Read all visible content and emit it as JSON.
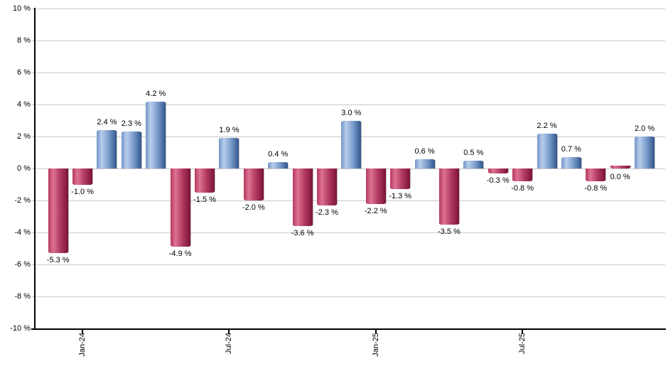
{
  "chart_data": {
    "type": "bar",
    "title": "",
    "xlabel": "",
    "ylabel": "",
    "unit": "%",
    "values": [
      -5.3,
      -1.0,
      2.4,
      2.3,
      4.2,
      -4.9,
      -1.5,
      1.9,
      -2.0,
      0.4,
      -3.6,
      -2.3,
      3.0,
      -2.2,
      -1.3,
      0.6,
      -3.5,
      0.5,
      -0.3,
      -0.8,
      2.2,
      0.7,
      -0.8,
      0.0,
      2.0
    ],
    "value_label_format": "{value} %",
    "y_axis": {
      "min": -10,
      "max": 10,
      "step": 2,
      "tick_labels": [
        "10 %",
        "8 %",
        "6 %",
        "4 %",
        "2 %",
        "0 %",
        "-2 %",
        "-4 %",
        "-6 %",
        "-8 %",
        "-10 %"
      ]
    },
    "x_axis": {
      "ticks": [
        {
          "bar_index": 1,
          "label": "Jan-24"
        },
        {
          "bar_index": 7,
          "label": "Jul-24"
        },
        {
          "bar_index": 13,
          "label": "Jan-25"
        },
        {
          "bar_index": 19,
          "label": "Jul-25"
        }
      ]
    },
    "legend": null,
    "grid": true,
    "colors": {
      "positive_bar_gradient": [
        "#7495c8",
        "#b7cdeb",
        "#7b9dcc",
        "#31568c"
      ],
      "negative_bar_gradient": [
        "#b4395e",
        "#dd7293",
        "#b03a60",
        "#7c1334"
      ],
      "gridline": "#c9c9c9",
      "axis": "#000000",
      "text": "#000000",
      "background": "#ffffff"
    }
  }
}
